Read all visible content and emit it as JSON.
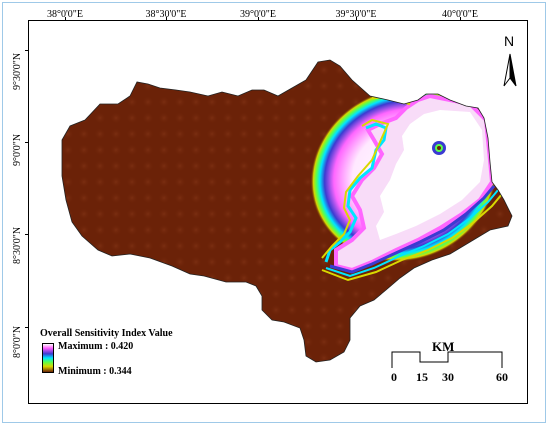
{
  "map": {
    "lon_labels": [
      "38°0'0\"E",
      "38°30'0\"E",
      "39°0'0\"E",
      "39°30'0\"E",
      "40°0'0\"E"
    ],
    "lat_labels": [
      "9°30'0\"N",
      "9°0'0\"N",
      "8°30'0\"N",
      "8°0'0\"N"
    ],
    "background_color": "#6b2208",
    "high_color": "#ffffff"
  },
  "legend": {
    "title": "Overall Sensitivity Index Value",
    "max_label": "Maximum : 0.420",
    "min_label": "Minimum : 0.344",
    "max_value": 0.42,
    "min_value": 0.344
  },
  "scalebar": {
    "unit": "KM",
    "labels": [
      "0",
      "15",
      "30",
      "60"
    ]
  },
  "north_arrow": {
    "label": "N",
    "icon": "north-arrow-icon"
  }
}
